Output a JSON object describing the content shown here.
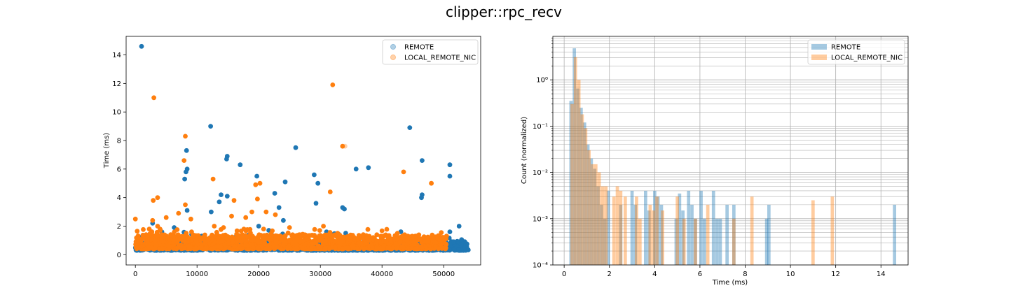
{
  "figure": {
    "suptitle": "clipper::rpc_recv"
  },
  "colors": {
    "remote": "#1f77b4",
    "local_remote_nic": "#ff7f0e",
    "grid": "#b0b0b0",
    "axes": "#000000"
  },
  "chart_data": [
    {
      "type": "scatter",
      "title": "",
      "xlabel": "",
      "ylabel": "Time (ms)",
      "xlim": [
        -1500,
        56000
      ],
      "ylim": [
        -0.72,
        15.3
      ],
      "xticks": [
        0,
        10000,
        20000,
        30000,
        40000,
        50000
      ],
      "xtick_labels": [
        "0",
        "10000",
        "20000",
        "30000",
        "40000",
        "50000"
      ],
      "yticks": [
        0,
        2,
        4,
        6,
        8,
        10,
        12,
        14
      ],
      "ytick_labels": [
        "0",
        "2",
        "4",
        "6",
        "8",
        "10",
        "12",
        "14"
      ],
      "grid": false,
      "legend_position": "top-right",
      "series": [
        {
          "name": "REMOTE",
          "color": "#1f77b4",
          "band": {
            "x_range": [
              0,
              54000
            ],
            "y_range": [
              0.3,
              0.95
            ]
          },
          "outliers": [
            [
              1000,
              14.6
            ],
            [
              8300,
              7.3
            ],
            [
              8400,
              6.0
            ],
            [
              8200,
              5.8
            ],
            [
              8000,
              5.3
            ],
            [
              8400,
              3.1
            ],
            [
              12200,
              9.0
            ],
            [
              12300,
              3.0
            ],
            [
              14900,
              6.9
            ],
            [
              14800,
              6.7
            ],
            [
              13900,
              4.2
            ],
            [
              14900,
              4.1
            ],
            [
              13600,
              3.7
            ],
            [
              17000,
              6.3
            ],
            [
              19700,
              5.5
            ],
            [
              22600,
              4.3
            ],
            [
              23300,
              3.3
            ],
            [
              24300,
              5.1
            ],
            [
              26000,
              7.5
            ],
            [
              29000,
              5.6
            ],
            [
              29600,
              5.0
            ],
            [
              29300,
              3.6
            ],
            [
              31000,
              1.6
            ],
            [
              33600,
              3.3
            ],
            [
              33900,
              3.2
            ],
            [
              35800,
              6.0
            ],
            [
              37800,
              6.1
            ],
            [
              44500,
              8.9
            ],
            [
              46500,
              6.6
            ],
            [
              46500,
              4.2
            ],
            [
              46400,
              4.0
            ],
            [
              51000,
              6.3
            ],
            [
              51000,
              5.5
            ],
            [
              51000,
              1.6
            ],
            [
              52500,
              2.0
            ],
            [
              6300,
              1.9
            ],
            [
              2800,
              2.2
            ],
            [
              20000,
              2.0
            ],
            [
              24000,
              2.4
            ],
            [
              4300,
              1.6
            ],
            [
              16000,
              1.2
            ],
            [
              43000,
              1.0
            ]
          ]
        },
        {
          "name": "LOCAL_REMOTE_NIC",
          "color": "#ff7f0e",
          "band": {
            "x_range": [
              0,
              50500
            ],
            "y_range": [
              0.4,
              1.4
            ]
          },
          "outliers": [
            [
              3000,
              11.0
            ],
            [
              8100,
              8.3
            ],
            [
              7900,
              6.6
            ],
            [
              8100,
              3.5
            ],
            [
              2900,
              3.8
            ],
            [
              3600,
              4.0
            ],
            [
              12600,
              5.3
            ],
            [
              16000,
              3.8
            ],
            [
              19500,
              4.9
            ],
            [
              20200,
              5.0
            ],
            [
              19800,
              3.9
            ],
            [
              32000,
              11.9
            ],
            [
              31600,
              4.4
            ],
            [
              34000,
              7.6
            ],
            [
              43500,
              5.8
            ],
            [
              48000,
              5.0
            ],
            [
              0,
              2.5
            ],
            [
              2800,
              2.4
            ],
            [
              3600,
              2.0
            ],
            [
              4000,
              1.8
            ],
            [
              5000,
              2.6
            ],
            [
              7000,
              2.9
            ],
            [
              9000,
              2.5
            ],
            [
              12800,
              2.0
            ],
            [
              15600,
              2.7
            ],
            [
              17900,
              2.6
            ],
            [
              18900,
              3.0
            ],
            [
              21200,
              3.0
            ],
            [
              22700,
              2.8
            ],
            [
              25000,
              1.9
            ],
            [
              30500,
              2.0
            ],
            [
              32800,
              1.5
            ],
            [
              42500,
              1.5
            ],
            [
              44900,
              1.3
            ],
            [
              4300,
              1.4
            ],
            [
              17600,
              1.8
            ],
            [
              20800,
              1.8
            ],
            [
              29900,
              1.7
            ],
            [
              39800,
              1.3
            ],
            [
              33600,
              7.6
            ],
            [
              14300,
              1.9
            ]
          ]
        }
      ]
    },
    {
      "type": "bar",
      "title": "",
      "xlabel": "Time (ms)",
      "ylabel": "Count (normalized)",
      "xlim": [
        -0.5,
        15.2
      ],
      "ylim": [
        0.0001,
        8.7
      ],
      "yscale": "log",
      "bin_width": 0.146,
      "xticks": [
        0,
        2,
        4,
        6,
        8,
        10,
        12,
        14
      ],
      "xtick_labels": [
        "0",
        "2",
        "4",
        "6",
        "8",
        "10",
        "12",
        "14"
      ],
      "yticks": [
        0.0001,
        0.001,
        0.01,
        0.1,
        1
      ],
      "ytick_labels": [
        "10⁻⁴",
        "10⁻³",
        "10⁻²",
        "10⁻¹",
        "10⁰"
      ],
      "grid": true,
      "legend_position": "top-right",
      "series": [
        {
          "name": "REMOTE",
          "color": "#1f77b4",
          "opacity": 0.4,
          "bins": [
            [
              0.3,
              0.35
            ],
            [
              0.45,
              4.8
            ],
            [
              0.6,
              0.65
            ],
            [
              0.75,
              0.25
            ],
            [
              0.9,
              0.12
            ],
            [
              1.05,
              0.04
            ],
            [
              1.2,
              0.02
            ],
            [
              1.35,
              0.012
            ],
            [
              1.5,
              0.005
            ],
            [
              1.65,
              0.002
            ],
            [
              1.8,
              0.001
            ],
            [
              1.95,
              0.004
            ],
            [
              2.5,
              0.002
            ],
            [
              3.0,
              0.004
            ],
            [
              3.15,
              0.002
            ],
            [
              3.6,
              0.004
            ],
            [
              3.75,
              0.0015
            ],
            [
              4.0,
              0.004
            ],
            [
              4.15,
              0.003
            ],
            [
              4.3,
              0.002
            ],
            [
              4.95,
              0.001
            ],
            [
              5.1,
              0.0035
            ],
            [
              5.25,
              0.0015
            ],
            [
              5.5,
              0.004
            ],
            [
              5.65,
              0.002
            ],
            [
              5.8,
              0.001
            ],
            [
              6.05,
              0.004
            ],
            [
              6.2,
              0.001
            ],
            [
              6.6,
              0.004
            ],
            [
              6.75,
              0.001
            ],
            [
              6.9,
              0.001
            ],
            [
              7.2,
              0.002
            ],
            [
              7.5,
              0.002
            ],
            [
              8.95,
              0.001
            ],
            [
              9.05,
              0.002
            ],
            [
              14.6,
              0.002
            ]
          ]
        },
        {
          "name": "LOCAL_REMOTE_NIC",
          "color": "#ff7f0e",
          "opacity": 0.4,
          "bins": [
            [
              0.35,
              0.3
            ],
            [
              0.5,
              3.1
            ],
            [
              0.65,
              1.0
            ],
            [
              0.8,
              0.18
            ],
            [
              0.95,
              0.09
            ],
            [
              1.1,
              0.03
            ],
            [
              1.25,
              0.015
            ],
            [
              1.4,
              0.015
            ],
            [
              1.55,
              0.01
            ],
            [
              1.7,
              0.005
            ],
            [
              1.85,
              0.005
            ],
            [
              2.2,
              0.003
            ],
            [
              2.35,
              0.005
            ],
            [
              2.5,
              0.004
            ],
            [
              2.7,
              0.003
            ],
            [
              3.2,
              0.003
            ],
            [
              3.35,
              0.001
            ],
            [
              3.8,
              0.002
            ],
            [
              3.95,
              0.0015
            ],
            [
              4.1,
              0.003
            ],
            [
              4.35,
              0.0015
            ],
            [
              5.0,
              0.003
            ],
            [
              5.3,
              0.001
            ],
            [
              5.8,
              0.001
            ],
            [
              6.35,
              0.002
            ],
            [
              7.5,
              0.001
            ],
            [
              8.3,
              0.003
            ],
            [
              11.0,
              0.0025
            ],
            [
              11.85,
              0.003
            ]
          ]
        }
      ]
    }
  ]
}
